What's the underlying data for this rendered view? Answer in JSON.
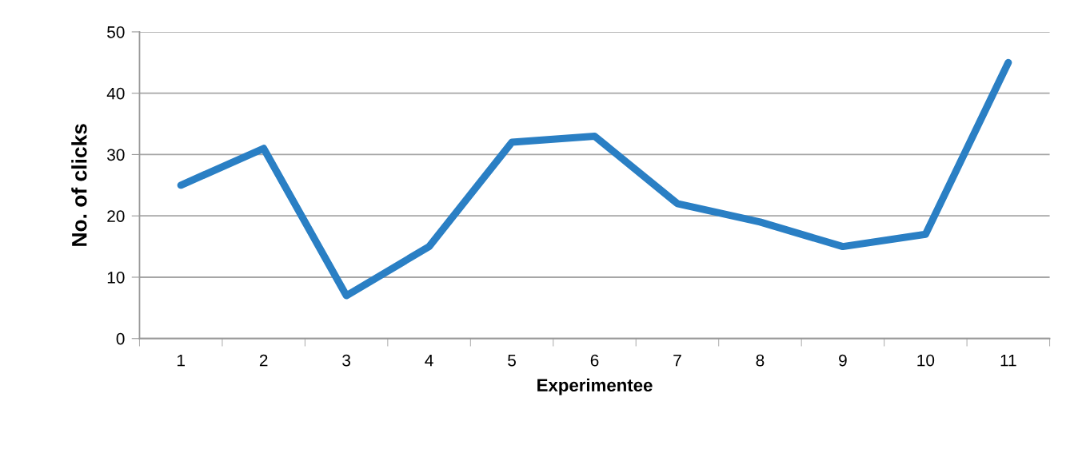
{
  "chart_data": {
    "type": "line",
    "xlabel": "Experimentee",
    "ylabel": "No. of clicks",
    "categories": [
      "1",
      "2",
      "3",
      "4",
      "5",
      "6",
      "7",
      "8",
      "9",
      "10",
      "11"
    ],
    "series": [
      {
        "color": "#2a7fc4",
        "values": [
          25,
          31,
          7,
          15,
          32,
          33,
          22,
          19,
          15,
          17,
          45
        ]
      }
    ],
    "ylim": [
      0,
      50
    ],
    "yticks": [
      0,
      10,
      20,
      30,
      40,
      50
    ],
    "grid": "y",
    "legend": false,
    "marker": "none",
    "line_style": "solid"
  }
}
